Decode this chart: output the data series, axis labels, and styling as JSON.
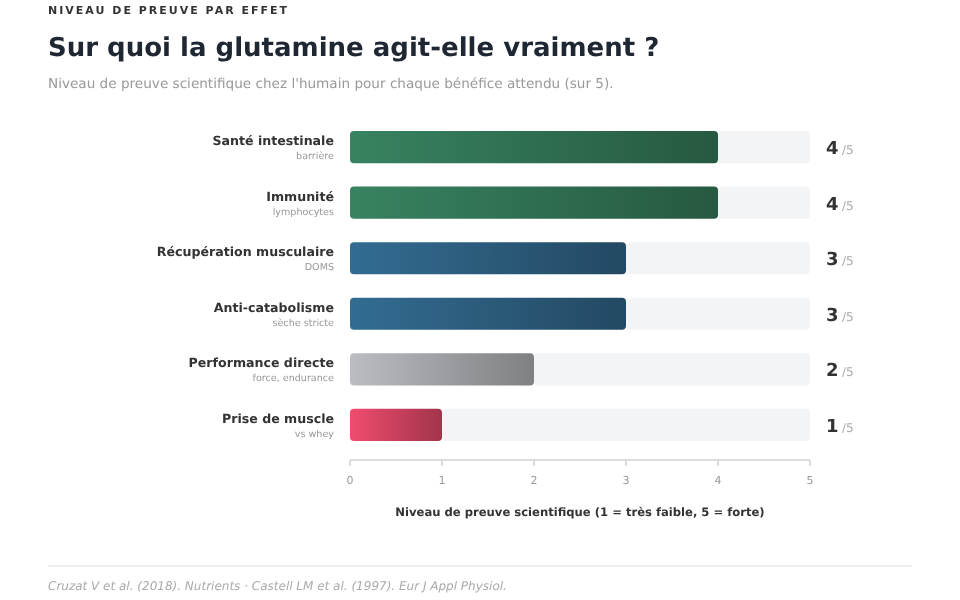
{
  "chart_data": {
    "type": "bar",
    "orientation": "horizontal",
    "stacked": true,
    "title": "Sur quoi la glutamine agit-elle vraiment ?",
    "subtitle": "Niveau de preuve scientifique chez l'humain pour chaque bénéfice attendu (sur 5).",
    "categories": [
      "Santé intestinale\nbarrière",
      "Immunité\nlymphocytes",
      "Récupération musculaire\nDOMS",
      "Anti-catabolisme\nsèche stricte",
      "Performance directe\nforce, endurance",
      "Prise de muscle\nvs whey"
    ],
    "series": [
      {
        "values": [
          4,
          4,
          3,
          3,
          2,
          1
        ],
        "value_labels": [
          "4",
          "4",
          "3",
          "3",
          "2",
          "1"
        ],
        "colors": [
          "#2f6e50",
          "#2f6e50",
          "#2b5a7a",
          "#2b5a7a",
          "#9c9ea2",
          "#c9405d"
        ]
      },
      {
        "values": [
          1,
          1,
          2,
          2,
          3,
          4
        ],
        "color": "#f3f4f6"
      }
    ],
    "xlim": [
      0,
      5
    ],
    "xticks": [
      0,
      1,
      2,
      3,
      4,
      5
    ],
    "xlabel": "Niveau de preuve scientifique (1 = très faible, 5 = forte)",
    "grid": false,
    "annotations": [
      "NIVEAU DE PREUVE PAR EFFET",
      "Cruzat V et al. (2018). Nutrients · Castell LM et al. (1997). Eur J Appl Physiol.",
      "/5",
      "/5",
      "/5",
      "/5",
      "/5",
      "/5"
    ]
  }
}
